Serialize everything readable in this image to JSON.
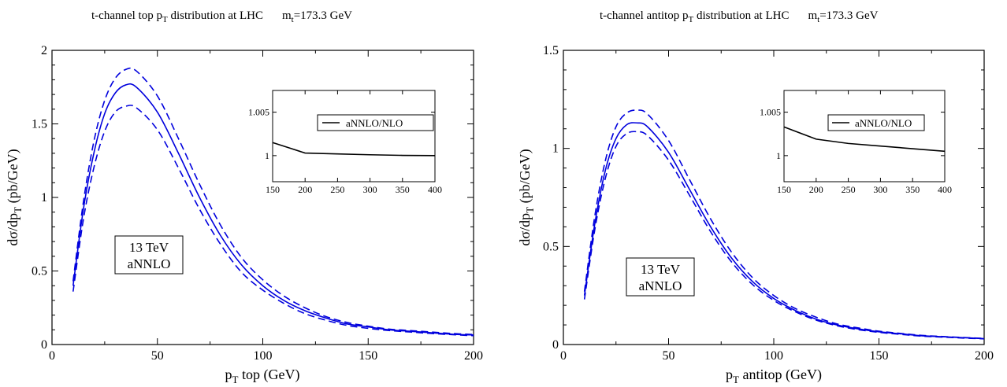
{
  "colors": {
    "central": "#0000dd",
    "band": "#0000dd",
    "ratio": "#000000",
    "axis": "#000000"
  },
  "chart_data": [
    {
      "type": "line",
      "title": {
        "main": "t-channel top p",
        "sub": "T",
        "rest": " distribution at LHC",
        "mass_main": "m",
        "mass_sub": "t",
        "mass_rest": "=173.3 GeV"
      },
      "xlabel": {
        "main": "p",
        "sub": "T",
        "rest": "  top (GeV)"
      },
      "ylabel": {
        "main": "dσ/dp",
        "sub": "T",
        "rest": " (pb/GeV)"
      },
      "xlim": [
        0,
        200
      ],
      "ylim": [
        0,
        2
      ],
      "xticks": [
        0,
        50,
        100,
        150,
        200
      ],
      "yticks": [
        0,
        0.5,
        1,
        1.5,
        2
      ],
      "xtick_labels": [
        "0",
        "50",
        "100",
        "150",
        "200"
      ],
      "ytick_labels": [
        "0",
        "0.5",
        "1",
        "1.5",
        "2"
      ],
      "label_box": [
        "13 TeV",
        "aNNLO"
      ],
      "x": [
        10,
        15,
        20,
        25,
        30,
        35,
        40,
        50,
        60,
        70,
        80,
        90,
        100,
        110,
        120,
        130,
        140,
        150,
        160,
        170,
        180,
        190,
        200
      ],
      "series": [
        {
          "role": "central",
          "style": "solid",
          "values": [
            0.4,
            0.93,
            1.31,
            1.57,
            1.71,
            1.765,
            1.75,
            1.58,
            1.3,
            1.0,
            0.74,
            0.54,
            0.4,
            0.3,
            0.23,
            0.18,
            0.14,
            0.12,
            0.1,
            0.09,
            0.08,
            0.07,
            0.065
          ]
        },
        {
          "role": "upper",
          "style": "dashed",
          "values": [
            0.43,
            0.98,
            1.39,
            1.66,
            1.81,
            1.87,
            1.86,
            1.69,
            1.4,
            1.09,
            0.81,
            0.59,
            0.44,
            0.33,
            0.25,
            0.19,
            0.15,
            0.125,
            0.105,
            0.095,
            0.085,
            0.075,
            0.068
          ]
        },
        {
          "role": "lower",
          "style": "dashed",
          "values": [
            0.36,
            0.86,
            1.21,
            1.45,
            1.58,
            1.62,
            1.61,
            1.46,
            1.2,
            0.92,
            0.68,
            0.49,
            0.37,
            0.28,
            0.21,
            0.165,
            0.13,
            0.11,
            0.095,
            0.085,
            0.075,
            0.067,
            0.06
          ]
        }
      ],
      "inset": {
        "legend": "aNNLO/NLO",
        "xlim": [
          150,
          400
        ],
        "ylim": [
          0.997,
          1.0075
        ],
        "xticks": [
          150,
          200,
          250,
          300,
          350,
          400
        ],
        "xtick_labels": [
          "150",
          "200",
          "250",
          "300",
          "350",
          "400"
        ],
        "yticks": [
          1,
          1.005
        ],
        "ytick_labels": [
          "1",
          "1.005"
        ],
        "x": [
          150,
          175,
          200,
          250,
          300,
          350,
          400
        ],
        "values": [
          1.0015,
          1.0009,
          1.0003,
          1.0002,
          1.0001,
          1.00003,
          1.0
        ]
      }
    },
    {
      "type": "line",
      "title": {
        "main": "t-channel antitop p",
        "sub": "T",
        "rest": " distribution at LHC",
        "mass_main": "m",
        "mass_sub": "t",
        "mass_rest": "=173.3 GeV"
      },
      "xlabel": {
        "main": "p",
        "sub": "T",
        "rest": "  antitop (GeV)"
      },
      "ylabel": {
        "main": "dσ/dp",
        "sub": "T",
        "rest": " (pb/GeV)"
      },
      "xlim": [
        0,
        200
      ],
      "ylim": [
        0,
        1.5
      ],
      "xticks": [
        0,
        50,
        100,
        150,
        200
      ],
      "yticks": [
        0,
        0.5,
        1,
        1.5
      ],
      "xtick_labels": [
        "0",
        "50",
        "100",
        "150",
        "200"
      ],
      "ytick_labels": [
        "0",
        "0.5",
        "1",
        "1.5"
      ],
      "label_box": [
        "13 TeV",
        "aNNLO"
      ],
      "x": [
        10,
        15,
        20,
        25,
        30,
        35,
        40,
        50,
        60,
        70,
        80,
        90,
        100,
        110,
        120,
        130,
        140,
        150,
        160,
        170,
        180,
        190,
        200
      ],
      "series": [
        {
          "role": "central",
          "style": "solid",
          "values": [
            0.25,
            0.62,
            0.89,
            1.05,
            1.12,
            1.13,
            1.11,
            0.98,
            0.79,
            0.6,
            0.44,
            0.32,
            0.235,
            0.175,
            0.13,
            0.1,
            0.08,
            0.065,
            0.055,
            0.045,
            0.04,
            0.035,
            0.03
          ]
        },
        {
          "role": "upper",
          "style": "dashed",
          "values": [
            0.27,
            0.66,
            0.94,
            1.11,
            1.18,
            1.195,
            1.175,
            1.04,
            0.84,
            0.64,
            0.47,
            0.34,
            0.25,
            0.185,
            0.14,
            0.105,
            0.085,
            0.068,
            0.057,
            0.047,
            0.041,
            0.036,
            0.031
          ]
        },
        {
          "role": "lower",
          "style": "dashed",
          "values": [
            0.23,
            0.59,
            0.85,
            1.01,
            1.075,
            1.085,
            1.065,
            0.94,
            0.76,
            0.575,
            0.42,
            0.305,
            0.225,
            0.168,
            0.125,
            0.096,
            0.076,
            0.062,
            0.052,
            0.043,
            0.038,
            0.033,
            0.029
          ]
        }
      ],
      "inset": {
        "legend": "aNNLO/NLO",
        "xlim": [
          150,
          400
        ],
        "ylim": [
          0.997,
          1.0075
        ],
        "xticks": [
          150,
          200,
          250,
          300,
          350,
          400
        ],
        "xtick_labels": [
          "150",
          "200",
          "250",
          "300",
          "350",
          "400"
        ],
        "yticks": [
          1,
          1.005
        ],
        "ytick_labels": [
          "1",
          "1.005"
        ],
        "x": [
          150,
          200,
          250,
          300,
          350,
          400
        ],
        "values": [
          1.0033,
          1.0019,
          1.0014,
          1.0011,
          1.0008,
          1.0005
        ]
      }
    }
  ]
}
